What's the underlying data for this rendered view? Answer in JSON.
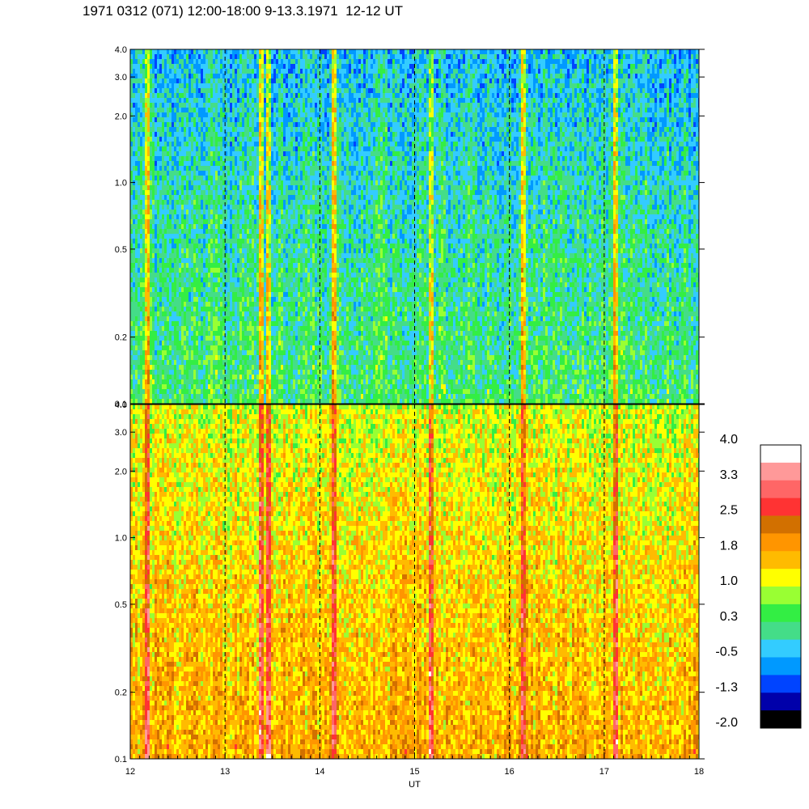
{
  "title": "1971 0312 (071) 12:00-18:00 9-13.3.1971  12-12 UT",
  "chart_data": {
    "type": "heatmap",
    "title": "1971 0312 (071) 12:00-18:00 9-13.3.1971  12-12 UT",
    "xlabel": "UT",
    "xlim": [
      12,
      18
    ],
    "x_ticks": [
      12,
      13,
      14,
      15,
      16,
      17,
      18
    ],
    "x_tick_labels": [
      "12",
      "13",
      "14",
      "15",
      "16",
      "17",
      "18"
    ],
    "dashed_verticals": [
      13,
      14,
      15,
      16,
      17
    ],
    "yscale": "log",
    "panels": [
      {
        "name": "upper",
        "ylim": [
          0.1,
          4.0
        ],
        "y_ticks": [
          0.1,
          0.2,
          0.5,
          1.0,
          2.0,
          3.0,
          4.0
        ],
        "y_tick_labels": [
          "0.1",
          "0.2",
          "0.5",
          "1.0",
          "2.0",
          "3.0",
          "4.0"
        ],
        "dominant_level_low_freq": 0.3,
        "dominant_level_high_freq": -0.5
      },
      {
        "name": "lower",
        "ylim": [
          0.1,
          4.0
        ],
        "y_ticks": [
          0.1,
          0.2,
          0.5,
          1.0,
          2.0,
          3.0,
          4.0
        ],
        "y_tick_labels": [
          "0.1",
          "0.2",
          "0.5",
          "1.0",
          "2.0",
          "3.0",
          "4.0"
        ],
        "dominant_level_low_freq": 1.8,
        "dominant_level_high_freq": 1.0
      }
    ],
    "bright_streaks_ut": [
      12.17,
      13.38,
      13.45,
      14.15,
      15.15,
      16.13,
      17.1
    ],
    "colorbar": {
      "range": [
        -2.0,
        4.0
      ],
      "labels": [
        "4.0",
        "3.3",
        "2.5",
        "1.8",
        "1.0",
        "0.3",
        "-0.5",
        "-1.3",
        "-2.0"
      ],
      "colors": [
        "#ffffff",
        "#ff9999",
        "#ff6666",
        "#ff3333",
        "#d27000",
        "#ff9500",
        "#ffbb00",
        "#ffff00",
        "#99ff33",
        "#33ee44",
        "#44dd88",
        "#33ccff",
        "#0099ff",
        "#0044ff",
        "#0000aa",
        "#000000"
      ]
    }
  }
}
